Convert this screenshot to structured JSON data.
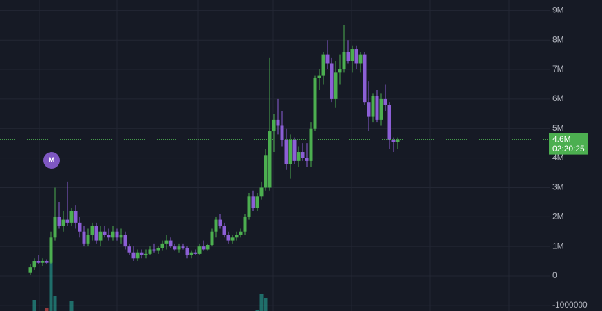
{
  "chart_data": {
    "type": "candlestick",
    "ylim": [
      -1190000,
      9358000
    ],
    "yticks": [
      {
        "value": 9000000,
        "label": "9M"
      },
      {
        "value": 8000000,
        "label": "8M"
      },
      {
        "value": 7000000,
        "label": "7M"
      },
      {
        "value": 6000000,
        "label": "6M"
      },
      {
        "value": 5000000,
        "label": "5M"
      },
      {
        "value": 4000000,
        "label": "4M"
      },
      {
        "value": 3000000,
        "label": "3M"
      },
      {
        "value": 2000000,
        "label": "2M"
      },
      {
        "value": 1000000,
        "label": "1M"
      },
      0,
      -1000000
    ],
    "grid": true,
    "up_color": "#4caf50",
    "down_color": "#8c5fd6",
    "open": [
      100000.0,
      300000.0,
      500000.0,
      450000.0,
      500000.0,
      450000.0,
      1300000.0,
      2000000.0,
      1700000.0,
      1900000.0,
      1800000.0,
      2200000.0,
      1800000.0,
      1500000.0,
      1100000.0,
      1400000.0,
      1700000.0,
      1200000.0,
      1500000.0,
      1400000.0,
      1300000.0,
      1500000.0,
      1300000.0,
      1400000.0,
      1000000.0,
      800000.0,
      600000.0,
      800000.0,
      700000.0,
      750000.0,
      900000.0,
      850000.0,
      950000.0,
      1100000.0,
      1200000.0,
      1000000.0,
      900000.0,
      1000000.0,
      950000.0,
      700000.0,
      800000.0,
      750000.0,
      1000000.0,
      900000.0,
      1050000.0,
      1500000.0,
      1900000.0,
      1700000.0,
      1400000.0,
      1200000.0,
      1300000.0,
      1400000.0,
      1500000.0,
      2000000.0,
      2700000.0,
      2300000.0,
      2700000.0,
      3000000.0,
      3000000.0,
      4900000.0,
      5300000.0,
      5100000.0,
      4600000.0,
      3800000.0,
      4600000.0,
      3900000.0,
      4200000.0,
      4000000.0,
      3900000.0,
      5000000.0,
      6700000.0,
      6800000.0,
      7500000.0,
      7200000.0,
      6000000.0,
      6900000.0,
      7000000.0,
      7600000.0,
      7300000.0,
      7700000.0,
      7200000.0,
      7500000.0,
      5900000.0,
      5400000.0,
      6100000.0,
      5300000.0,
      6000000.0,
      5800000.0,
      4600000.0,
      4550000.0
    ],
    "high": [
      400000.0,
      600000.0,
      700000.0,
      600000.0,
      550000.0,
      1500000.0,
      3000000.0,
      2500000.0,
      2200000.0,
      3200000.0,
      2300000.0,
      2400000.0,
      2000000.0,
      1700000.0,
      1600000.0,
      1800000.0,
      1800000.0,
      1700000.0,
      1700000.0,
      1600000.0,
      1700000.0,
      1600000.0,
      1600000.0,
      1500000.0,
      1100000.0,
      1000000.0,
      900000.0,
      900000.0,
      900000.0,
      1000000.0,
      1100000.0,
      1000000.0,
      1200000.0,
      1400000.0,
      1300000.0,
      1100000.0,
      1100000.0,
      1100000.0,
      1000000.0,
      850000.0,
      900000.0,
      1100000.0,
      1200000.0,
      1100000.0,
      1600000.0,
      2000000.0,
      2100000.0,
      1800000.0,
      1500000.0,
      1400000.0,
      1500000.0,
      1600000.0,
      2100000.0,
      2800000.0,
      2900000.0,
      2800000.0,
      3200000.0,
      4300000.0,
      7400000.0,
      5500000.0,
      6000000.0,
      5600000.0,
      5000000.0,
      4800000.0,
      4700000.0,
      4400000.0,
      4500000.0,
      4500000.0,
      5200000.0,
      6800000.0,
      7000000.0,
      7600000.0,
      8000000.0,
      7400000.0,
      7300000.0,
      7500000.0,
      8500000.0,
      8000000.0,
      7800000.0,
      7800000.0,
      7600000.0,
      7600000.0,
      6600000.0,
      6200000.0,
      6300000.0,
      6200000.0,
      6500000.0,
      5900000.0,
      4700000.0,
      4700000.0
    ],
    "low": [
      50000.0,
      200000.0,
      400000.0,
      350000.0,
      400000.0,
      400000.0,
      1200000.0,
      1600000.0,
      1500000.0,
      1700000.0,
      1700000.0,
      1600000.0,
      1300000.0,
      1000000.0,
      1000000.0,
      1200000.0,
      1100000.0,
      1000000.0,
      1300000.0,
      1200000.0,
      1200000.0,
      1200000.0,
      1100000.0,
      900000.0,
      700000.0,
      500000.0,
      500000.0,
      600000.0,
      600000.0,
      700000.0,
      800000.0,
      750000.0,
      850000.0,
      900000.0,
      950000.0,
      850000.0,
      800000.0,
      900000.0,
      600000.0,
      600000.0,
      700000.0,
      700000.0,
      850000.0,
      850000.0,
      1000000.0,
      1300000.0,
      1600000.0,
      1300000.0,
      1100000.0,
      1100000.0,
      1200000.0,
      1300000.0,
      1400000.0,
      1900000.0,
      2200000.0,
      2200000.0,
      2600000.0,
      2900000.0,
      2900000.0,
      4200000.0,
      4800000.0,
      4400000.0,
      3600000.0,
      3300000.0,
      3800000.0,
      3700000.0,
      3900000.0,
      3700000.0,
      3700000.0,
      4900000.0,
      6300000.0,
      6500000.0,
      7000000.0,
      5900000.0,
      5700000.0,
      6500000.0,
      6900000.0,
      7200000.0,
      6900000.0,
      7000000.0,
      6900000.0,
      5800000.0,
      4900000.0,
      5200000.0,
      5200000.0,
      5100000.0,
      5600000.0,
      4300000.0,
      4200000.0,
      4300000.0
    ],
    "close": [
      300000.0,
      500000.0,
      450000.0,
      500000.0,
      450000.0,
      1300000.0,
      2000000.0,
      1700000.0,
      1900000.0,
      1800000.0,
      2200000.0,
      1800000.0,
      1500000.0,
      1100000.0,
      1400000.0,
      1700000.0,
      1200000.0,
      1500000.0,
      1400000.0,
      1300000.0,
      1500000.0,
      1300000.0,
      1400000.0,
      1000000.0,
      800000.0,
      600000.0,
      800000.0,
      700000.0,
      750000.0,
      900000.0,
      850000.0,
      950000.0,
      1100000.0,
      1200000.0,
      1000000.0,
      900000.0,
      1000000.0,
      950000.0,
      700000.0,
      800000.0,
      750000.0,
      1000000.0,
      900000.0,
      1050000.0,
      1500000.0,
      1900000.0,
      1700000.0,
      1400000.0,
      1200000.0,
      1300000.0,
      1400000.0,
      1500000.0,
      2000000.0,
      2700000.0,
      2300000.0,
      2700000.0,
      3000000.0,
      4100000.0,
      4900000.0,
      5300000.0,
      5100000.0,
      4600000.0,
      3800000.0,
      4600000.0,
      3900000.0,
      4200000.0,
      4000000.0,
      3900000.0,
      5000000.0,
      6700000.0,
      6800000.0,
      7500000.0,
      7200000.0,
      6000000.0,
      6900000.0,
      7000000.0,
      7600000.0,
      7300000.0,
      7700000.0,
      7200000.0,
      7500000.0,
      5900000.0,
      5400000.0,
      6100000.0,
      5300000.0,
      6000000.0,
      5800000.0,
      4600000.0,
      4550000.0,
      4630000.0
    ],
    "volume": [
      null,
      160,
      null,
      null,
      40,
      1000,
      220,
      null,
      null,
      null,
      150,
      null,
      null,
      null,
      null,
      null,
      null,
      null,
      null,
      null,
      null,
      null,
      null,
      null,
      null,
      null,
      null,
      null,
      null,
      null,
      null,
      null,
      null,
      null,
      null,
      null,
      null,
      null,
      null,
      null,
      null,
      null,
      null,
      null,
      null,
      null,
      null,
      null,
      null,
      null,
      null,
      null,
      null,
      null,
      null,
      20,
      250,
      190,
      null,
      null,
      null,
      null,
      null,
      null,
      null,
      null,
      null,
      null,
      null,
      null,
      null,
      null,
      null,
      null,
      null,
      null,
      null,
      null,
      null,
      null,
      null,
      null,
      null,
      null,
      null,
      null,
      null,
      null,
      null,
      null
    ],
    "current_price": {
      "value": 4630000,
      "label": "4.6M"
    },
    "countdown": "02:20:25",
    "marker": "M"
  }
}
